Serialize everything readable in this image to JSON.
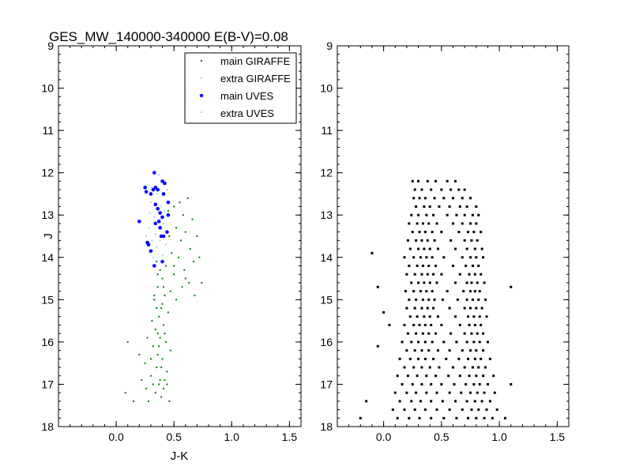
{
  "chart_data": [
    {
      "type": "scatter",
      "title": "GES_MW_140000-340000 E(B-V)=0.08",
      "xlabel": "J-K",
      "ylabel": "J",
      "xlim": [
        -0.5,
        1.6
      ],
      "ylim": [
        18,
        9
      ],
      "y_inverted": true,
      "xticks": [
        "0.0",
        "0.5",
        "1.0",
        "1.5"
      ],
      "yticks": [
        "9",
        "10",
        "11",
        "12",
        "13",
        "14",
        "15",
        "16",
        "17",
        "18"
      ],
      "grid": false,
      "legend_position": "top-right",
      "series": [
        {
          "name": "main GIRAFFE",
          "color": "#008000",
          "marker": "small-square",
          "points": [
            [
              0.35,
              14.1
            ],
            [
              0.38,
              14.3
            ],
            [
              0.4,
              14.5
            ],
            [
              0.36,
              14.7
            ],
            [
              0.42,
              14.9
            ],
            [
              0.33,
              15.0
            ],
            [
              0.39,
              15.2
            ],
            [
              0.37,
              15.4
            ],
            [
              0.41,
              15.6
            ],
            [
              0.34,
              15.7
            ],
            [
              0.38,
              15.9
            ],
            [
              0.43,
              16.0
            ],
            [
              0.32,
              16.1
            ],
            [
              0.36,
              16.3
            ],
            [
              0.4,
              16.4
            ],
            [
              0.35,
              16.6
            ],
            [
              0.44,
              16.7
            ],
            [
              0.3,
              16.8
            ],
            [
              0.38,
              16.9
            ],
            [
              0.41,
              17.1
            ],
            [
              0.34,
              17.2
            ],
            [
              0.46,
              17.4
            ],
            [
              0.28,
              17.4
            ],
            [
              0.39,
              17.3
            ],
            [
              0.25,
              16.5
            ],
            [
              0.2,
              16.3
            ],
            [
              0.1,
              16.0
            ],
            [
              0.08,
              17.2
            ],
            [
              0.15,
              17.4
            ],
            [
              0.45,
              15.3
            ],
            [
              0.43,
              14.2
            ],
            [
              0.31,
              15.5
            ],
            [
              0.27,
              15.9
            ],
            [
              0.47,
              16.2
            ],
            [
              0.42,
              16.9
            ],
            [
              0.37,
              17.0
            ],
            [
              0.33,
              14.9
            ],
            [
              0.4,
              15.1
            ],
            [
              0.36,
              15.8
            ],
            [
              0.39,
              16.6
            ],
            [
              0.35,
              15.2
            ],
            [
              0.42,
              15.8
            ],
            [
              0.3,
              16.4
            ],
            [
              0.37,
              16.1
            ],
            [
              0.44,
              17.0
            ],
            [
              0.32,
              17.0
            ],
            [
              0.41,
              14.7
            ],
            [
              0.36,
              14.4
            ],
            [
              0.26,
              17.1
            ],
            [
              0.22,
              16.9
            ],
            [
              0.5,
              12.8
            ],
            [
              0.55,
              12.7
            ],
            [
              0.62,
              12.6
            ],
            [
              0.58,
              13.0
            ],
            [
              0.66,
              13.1
            ],
            [
              0.52,
              13.3
            ],
            [
              0.6,
              13.4
            ],
            [
              0.7,
              13.5
            ],
            [
              0.56,
              13.6
            ],
            [
              0.64,
              13.8
            ],
            [
              0.48,
              13.9
            ],
            [
              0.54,
              14.0
            ],
            [
              0.67,
              14.1
            ],
            [
              0.72,
              14.0
            ],
            [
              0.59,
              14.3
            ],
            [
              0.5,
              14.4
            ],
            [
              0.63,
              14.6
            ],
            [
              0.74,
              14.6
            ],
            [
              0.57,
              14.7
            ],
            [
              0.47,
              14.8
            ],
            [
              0.68,
              14.9
            ],
            [
              0.52,
              15.0
            ],
            [
              0.6,
              14.5
            ],
            [
              0.46,
              13.5
            ],
            [
              0.45,
              12.9
            ],
            [
              0.5,
              14.2
            ]
          ]
        },
        {
          "name": "extra GIRAFFE",
          "color": "#ffc87a",
          "marker": "small-square",
          "points": []
        },
        {
          "name": "main UVES",
          "color": "#0000ff",
          "marker": "dot",
          "points": [
            [
              0.33,
              12.0
            ],
            [
              0.4,
              12.2
            ],
            [
              0.42,
              12.25
            ],
            [
              0.25,
              12.35
            ],
            [
              0.26,
              12.45
            ],
            [
              0.32,
              12.4
            ],
            [
              0.34,
              12.35
            ],
            [
              0.36,
              12.4
            ],
            [
              0.3,
              12.5
            ],
            [
              0.41,
              12.5
            ],
            [
              0.45,
              12.7
            ],
            [
              0.34,
              12.75
            ],
            [
              0.36,
              12.85
            ],
            [
              0.45,
              13.0
            ],
            [
              0.4,
              13.05
            ],
            [
              0.2,
              13.15
            ],
            [
              0.34,
              13.2
            ],
            [
              0.38,
              13.3
            ],
            [
              0.44,
              13.4
            ],
            [
              0.28,
              13.7
            ],
            [
              0.3,
              13.85
            ],
            [
              0.33,
              14.2
            ],
            [
              0.4,
              14.1
            ],
            [
              0.37,
              13.15
            ],
            [
              0.38,
              12.95
            ],
            [
              0.39,
              13.5
            ],
            [
              0.41,
              13.5
            ],
            [
              0.27,
              13.65
            ]
          ]
        },
        {
          "name": "extra UVES",
          "color": "#add8e6",
          "marker": "small-square",
          "points": [
            [
              0.37,
              12.05
            ],
            [
              0.27,
              12.3
            ],
            [
              0.31,
              12.35
            ],
            [
              0.35,
              12.5
            ],
            [
              0.4,
              12.55
            ],
            [
              0.3,
              12.7
            ],
            [
              0.39,
              12.8
            ],
            [
              0.29,
              12.95
            ],
            [
              0.42,
              12.9
            ],
            [
              0.33,
              13.05
            ],
            [
              0.36,
              13.2
            ],
            [
              0.28,
              13.3
            ],
            [
              0.41,
              13.2
            ],
            [
              0.34,
              13.45
            ],
            [
              0.38,
              13.6
            ],
            [
              0.31,
              13.6
            ],
            [
              0.43,
              13.7
            ],
            [
              0.35,
              13.75
            ],
            [
              0.29,
              13.9
            ],
            [
              0.4,
              13.95
            ],
            [
              0.32,
              14.0
            ],
            [
              0.38,
              13.1
            ],
            [
              0.44,
              12.4
            ],
            [
              0.26,
              13.5
            ]
          ]
        }
      ]
    },
    {
      "type": "scatter",
      "xlim": [
        -0.4,
        1.6
      ],
      "ylim": [
        18,
        9
      ],
      "y_inverted": true,
      "xticks": [
        "0.0",
        "0.5",
        "1.0",
        "1.5"
      ],
      "yticks": [
        "9",
        "10",
        "11",
        "12",
        "13",
        "14",
        "15",
        "16",
        "17",
        "18"
      ],
      "grid": false,
      "series": [
        {
          "color": "#000000",
          "marker": "small-square",
          "points_by_J": [
            [
              12.2,
              [
                0.25,
                0.3,
                0.38,
                0.45,
                0.55,
                0.62
              ]
            ],
            [
              12.4,
              [
                0.27,
                0.33,
                0.41,
                0.5,
                0.58,
                0.65,
                0.7
              ]
            ],
            [
              12.6,
              [
                0.26,
                0.31,
                0.36,
                0.44,
                0.52,
                0.6,
                0.68,
                0.75
              ]
            ],
            [
              12.8,
              [
                0.28,
                0.35,
                0.4,
                0.48,
                0.57,
                0.66,
                0.72,
                0.8
              ]
            ],
            [
              13.0,
              [
                0.24,
                0.3,
                0.37,
                0.43,
                0.55,
                0.63,
                0.7,
                0.77,
                0.82
              ]
            ],
            [
              13.2,
              [
                0.22,
                0.29,
                0.34,
                0.39,
                0.46,
                0.6,
                0.68,
                0.75,
                0.8
              ]
            ],
            [
              13.4,
              [
                0.25,
                0.31,
                0.36,
                0.42,
                0.5,
                0.65,
                0.73,
                0.78,
                0.84
              ]
            ],
            [
              13.6,
              [
                0.21,
                0.28,
                0.33,
                0.38,
                0.44,
                0.58,
                0.7,
                0.76,
                0.81
              ]
            ],
            [
              13.8,
              [
                0.23,
                0.3,
                0.35,
                0.4,
                0.47,
                0.62,
                0.72,
                0.79,
                0.85
              ]
            ],
            [
              14.0,
              [
                0.18,
                0.26,
                0.32,
                0.37,
                0.42,
                0.52,
                0.68,
                0.75,
                0.8,
                0.86
              ]
            ],
            [
              14.2,
              [
                0.22,
                0.29,
                0.34,
                0.39,
                0.45,
                0.6,
                0.71,
                0.77,
                0.82
              ]
            ],
            [
              14.4,
              [
                0.2,
                0.27,
                0.33,
                0.38,
                0.43,
                0.5,
                0.66,
                0.74,
                0.79,
                0.84
              ]
            ],
            [
              14.6,
              [
                0.24,
                0.3,
                0.35,
                0.4,
                0.46,
                0.62,
                0.72,
                0.76,
                0.81,
                0.87
              ]
            ],
            [
              14.8,
              [
                0.19,
                0.26,
                0.32,
                0.37,
                0.42,
                0.55,
                0.69,
                0.75,
                0.79,
                0.83
              ]
            ],
            [
              15.0,
              [
                0.22,
                0.28,
                0.34,
                0.39,
                0.44,
                0.51,
                0.64,
                0.72,
                0.77,
                0.82,
                0.88
              ]
            ],
            [
              15.2,
              [
                0.2,
                0.27,
                0.33,
                0.38,
                0.43,
                0.57,
                0.7,
                0.75,
                0.8,
                0.85
              ]
            ],
            [
              15.4,
              [
                0.23,
                0.29,
                0.35,
                0.4,
                0.47,
                0.62,
                0.73,
                0.78,
                0.83,
                0.89
              ]
            ],
            [
              15.6,
              [
                0.18,
                0.26,
                0.31,
                0.36,
                0.41,
                0.5,
                0.66,
                0.74,
                0.79,
                0.84
              ]
            ],
            [
              15.8,
              [
                0.21,
                0.28,
                0.34,
                0.39,
                0.45,
                0.58,
                0.7,
                0.76,
                0.81,
                0.86
              ]
            ],
            [
              16.0,
              [
                0.16,
                0.24,
                0.3,
                0.36,
                0.42,
                0.52,
                0.63,
                0.72,
                0.78,
                0.83,
                0.9
              ]
            ],
            [
              16.2,
              [
                0.2,
                0.27,
                0.33,
                0.39,
                0.47,
                0.57,
                0.68,
                0.75,
                0.8,
                0.86
              ]
            ],
            [
              16.4,
              [
                0.14,
                0.23,
                0.3,
                0.36,
                0.43,
                0.54,
                0.65,
                0.73,
                0.79,
                0.84,
                0.92
              ]
            ],
            [
              16.6,
              [
                0.18,
                0.26,
                0.33,
                0.4,
                0.48,
                0.6,
                0.7,
                0.77,
                0.82,
                0.88
              ]
            ],
            [
              16.8,
              [
                0.12,
                0.21,
                0.29,
                0.37,
                0.45,
                0.56,
                0.66,
                0.74,
                0.8,
                0.86,
                0.95
              ]
            ],
            [
              17.0,
              [
                0.16,
                0.25,
                0.33,
                0.41,
                0.5,
                0.61,
                0.71,
                0.78,
                0.83,
                0.9
              ]
            ],
            [
              17.2,
              [
                0.1,
                0.2,
                0.28,
                0.37,
                0.46,
                0.57,
                0.67,
                0.75,
                0.81,
                0.87,
                0.96
              ]
            ],
            [
              17.4,
              [
                0.14,
                0.24,
                0.32,
                0.41,
                0.51,
                0.62,
                0.72,
                0.79,
                0.85,
                0.92
              ]
            ],
            [
              17.6,
              [
                0.08,
                0.18,
                0.27,
                0.36,
                0.46,
                0.57,
                0.68,
                0.76,
                0.82,
                0.89,
                0.98
              ]
            ],
            [
              17.8,
              [
                0.12,
                0.22,
                0.31,
                0.41,
                0.52,
                0.63,
                0.73,
                0.8,
                0.87,
                0.94
              ]
            ],
            [
              13.9,
              [
                -0.1
              ]
            ],
            [
              14.7,
              [
                -0.05,
                1.1
              ]
            ],
            [
              15.3,
              [
                0.0
              ]
            ],
            [
              15.6,
              [
                0.05
              ]
            ],
            [
              16.1,
              [
                -0.05
              ]
            ],
            [
              17.0,
              [
                1.1
              ]
            ],
            [
              17.4,
              [
                -0.15
              ]
            ],
            [
              17.8,
              [
                -0.2,
                1.05
              ]
            ]
          ]
        }
      ]
    }
  ]
}
